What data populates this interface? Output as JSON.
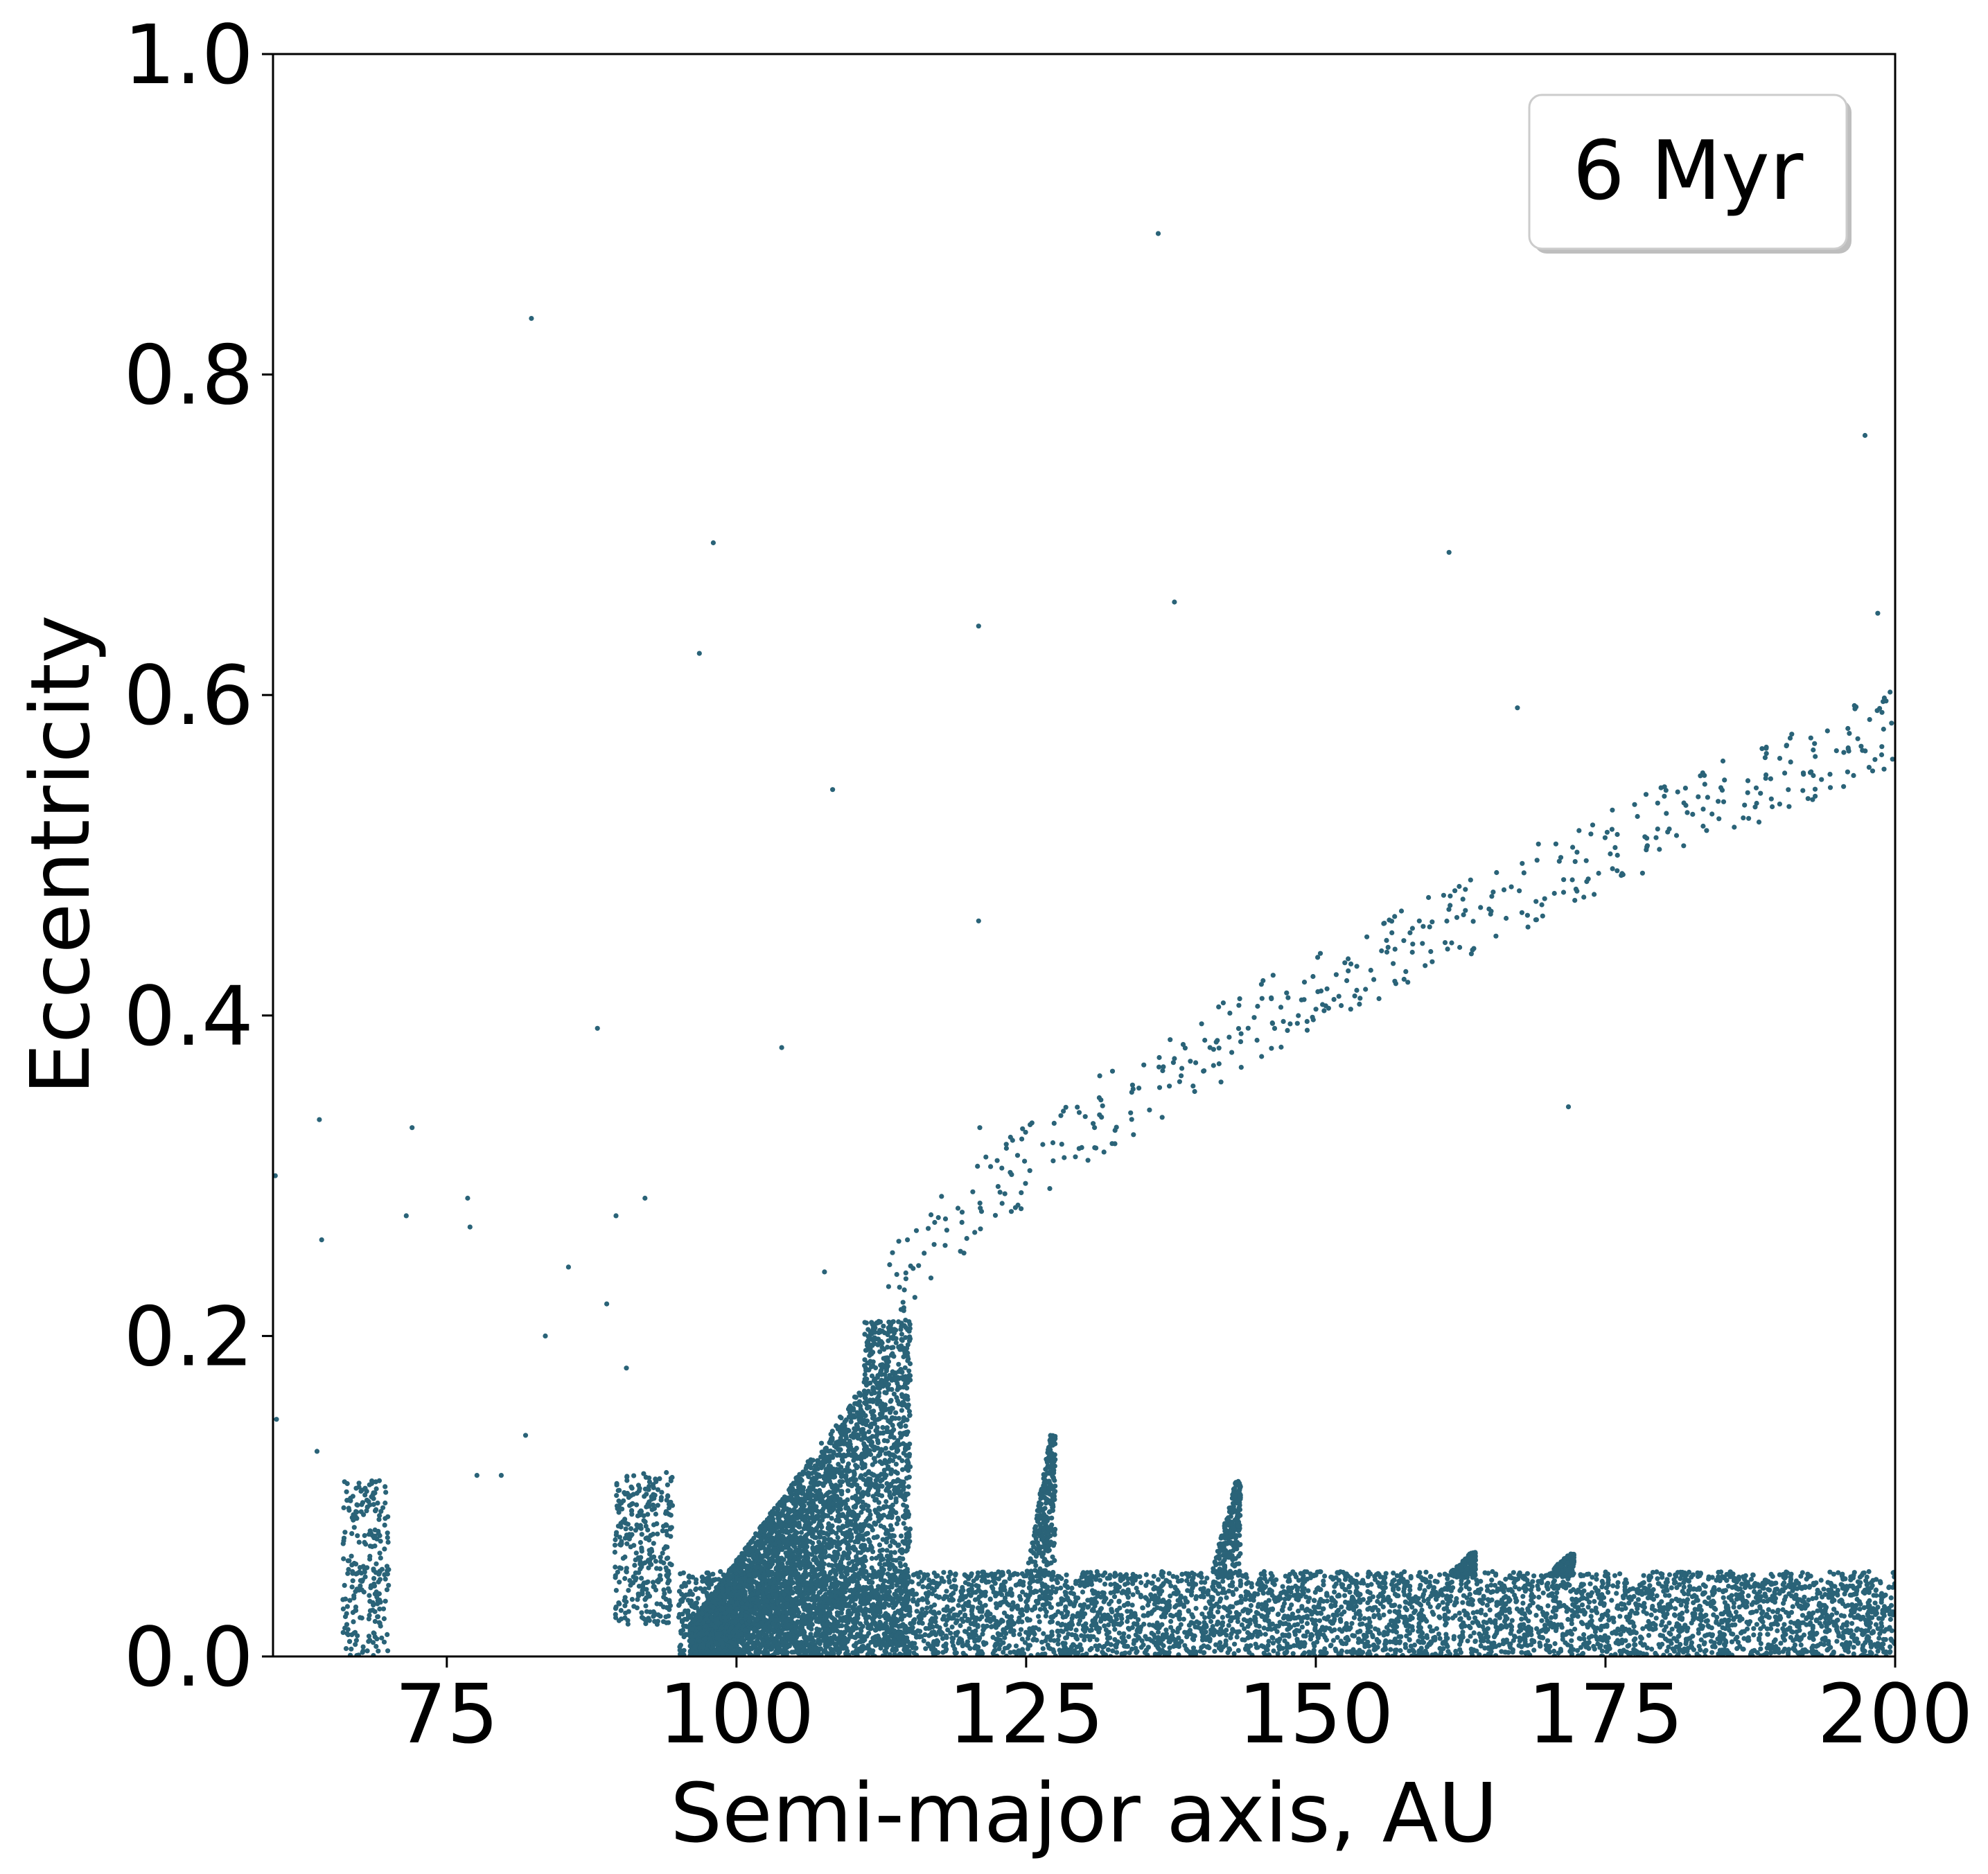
{
  "chart_data": {
    "type": "scatter",
    "title": "",
    "xlabel": "Semi-major axis, AU",
    "ylabel": "Eccentricity",
    "xlim": [
      60,
      200
    ],
    "ylim": [
      0.0,
      1.0
    ],
    "x_ticks": [
      75,
      100,
      125,
      150,
      175,
      200
    ],
    "x_tick_labels": [
      "75",
      "100",
      "125",
      "150",
      "175",
      "200"
    ],
    "y_ticks": [
      0.0,
      0.2,
      0.4,
      0.6,
      0.8,
      1.0
    ],
    "y_tick_labels": [
      "0.0",
      "0.2",
      "0.4",
      "0.6",
      "0.8",
      "1.0"
    ],
    "grid": false,
    "legend": {
      "label": "6 Myr",
      "placement": "top-right"
    },
    "marker_color": "#2a6378",
    "series": [
      {
        "name": "",
        "points": [
          [
            60.2,
            0.3
          ],
          [
            60.3,
            0.148
          ],
          [
            64.0,
            0.335
          ],
          [
            63.8,
            0.128
          ],
          [
            64.2,
            0.26
          ],
          [
            72.0,
            0.33
          ],
          [
            71.5,
            0.275
          ],
          [
            76.8,
            0.286
          ],
          [
            77.0,
            0.268
          ],
          [
            77.6,
            0.113
          ],
          [
            79.7,
            0.113
          ],
          [
            81.8,
            0.138
          ],
          [
            82.3,
            0.835
          ],
          [
            83.5,
            0.2
          ],
          [
            85.5,
            0.243
          ],
          [
            88.0,
            0.392
          ],
          [
            88.8,
            0.22
          ],
          [
            89.6,
            0.275
          ],
          [
            90.5,
            0.18
          ],
          [
            92.1,
            0.286
          ],
          [
            96.8,
            0.626
          ],
          [
            98.0,
            0.695
          ],
          [
            103.9,
            0.38
          ],
          [
            107.6,
            0.24
          ],
          [
            108.3,
            0.541
          ],
          [
            120.9,
            0.643
          ],
          [
            120.9,
            0.459
          ],
          [
            121.0,
            0.33
          ],
          [
            136.4,
            0.888
          ],
          [
            137.8,
            0.658
          ],
          [
            161.5,
            0.689
          ],
          [
            167.4,
            0.592
          ],
          [
            171.8,
            0.343
          ],
          [
            197.4,
            0.762
          ],
          [
            198.5,
            0.651
          ]
        ]
      }
    ],
    "features": [
      {
        "kind": "cluster",
        "x_range": [
          66,
          70
        ],
        "y_range": [
          0.0,
          0.11
        ],
        "points": 240
      },
      {
        "kind": "cluster",
        "x_range": [
          89.5,
          94.5
        ],
        "y_range": [
          0.02,
          0.115
        ],
        "points": 320
      },
      {
        "kind": "band",
        "x_range": [
          95,
          200
        ],
        "y_max": 0.053,
        "points": 5200
      },
      {
        "kind": "tongue",
        "x_range": [
          96,
          115
        ],
        "y_range": [
          0.0,
          0.21
        ],
        "points": 4600
      },
      {
        "kind": "resonance-spike",
        "x": 127.5,
        "height": 0.138
      },
      {
        "kind": "resonance-spike",
        "x": 143.5,
        "height": 0.11
      },
      {
        "kind": "resonance-spike",
        "x": 163.8,
        "height": 0.065
      },
      {
        "kind": "resonance-spike",
        "x": 172.3,
        "height": 0.064
      },
      {
        "kind": "arc",
        "x_range": [
          113,
          200
        ],
        "e_at_start": 0.22,
        "e_at_end": 0.58,
        "points": 460
      }
    ]
  }
}
